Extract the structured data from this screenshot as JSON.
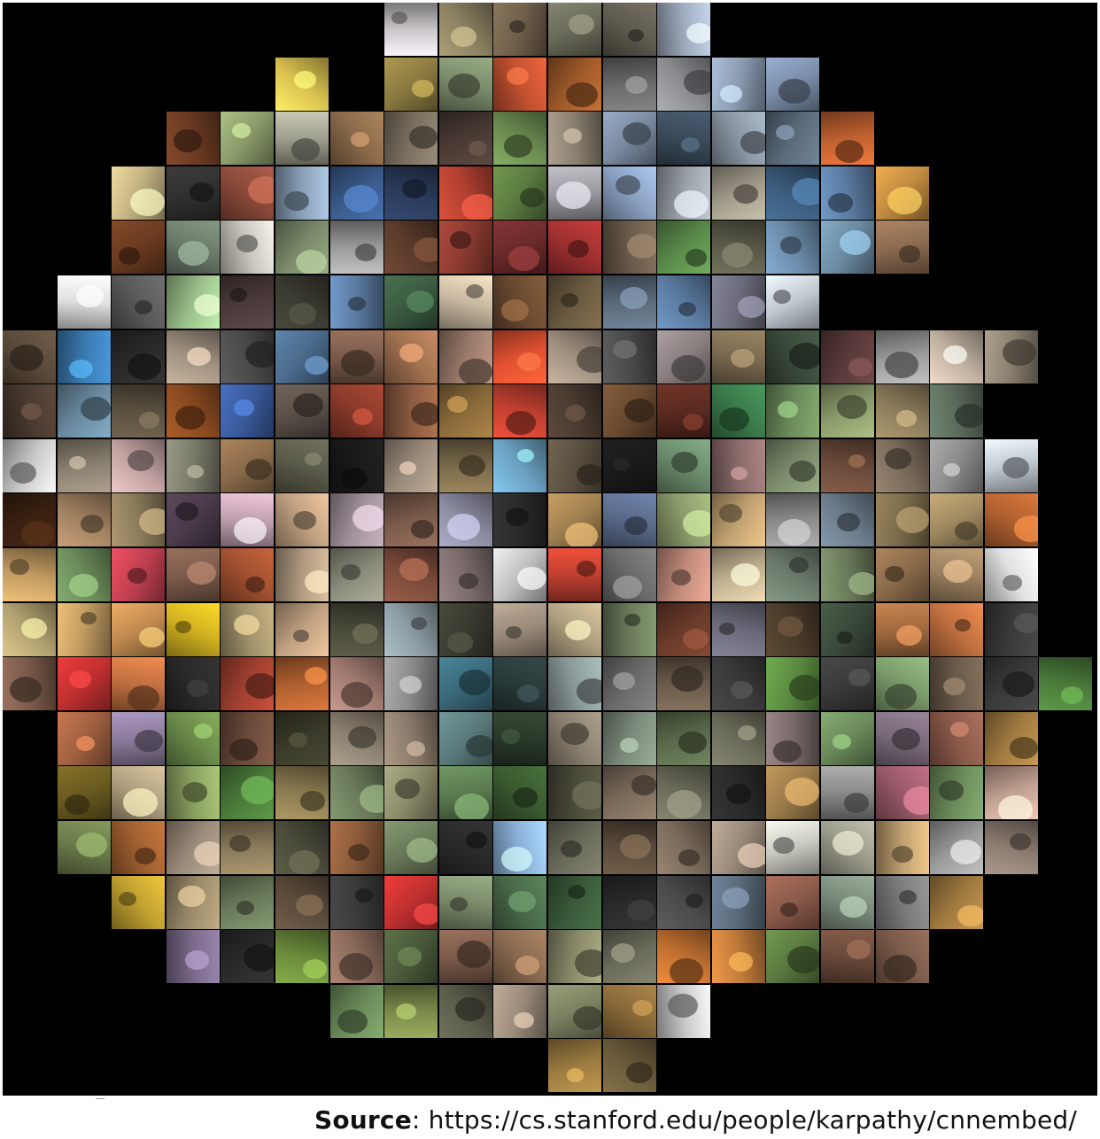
{
  "caption": {
    "label": "Source",
    "separator": ": ",
    "url": "https://cs.stanford.edu/people/karpathy/cnnembed/"
  },
  "grid": {
    "rows": [
      {
        "start": 7,
        "cols": [
          "#c8c4c8",
          "#8a8060",
          "#6e5e4a",
          "#6a6a5a",
          "#5e5a4e",
          "#9eaabd"
        ]
      },
      {
        "start": 5,
        "cols": [
          "#d8c050",
          "#000000",
          "#8a7a40",
          "#7a8a6a",
          "#c05030",
          "#a05a2a",
          "#6a6a6a",
          "#8a8c90",
          "#8a9ab0",
          "#7a8ca8"
        ]
      },
      {
        "start": 3,
        "cols": [
          "#6a3a22",
          "#8a9a6a",
          "#a0a090",
          "#8a6a4a",
          "#7a7060",
          "#4a3a34",
          "#6a8a50",
          "#8a8070",
          "#7a8aa0",
          "#3a4a5a",
          "#8a96a4",
          "#5a6a7a",
          "#c06030"
        ]
      },
      {
        "start": 2,
        "cols": [
          "#c0b080",
          "#303030",
          "#8a4a3a",
          "#8aa0b8",
          "#3a5a8a",
          "#2a3a5a",
          "#b04030",
          "#5a7a40",
          "#9a9aa0",
          "#8aa0c0",
          "#9aa0a8",
          "#a09a8a",
          "#3a5a7a",
          "#5a7aa0",
          "#c08a40"
        ]
      },
      {
        "start": 2,
        "cols": [
          "#6a3a20",
          "#6a7a6a",
          "#c8c4bc",
          "#7a8a6a",
          "#9a9a9a",
          "#5a3a2a",
          "#8a3a30",
          "#6a2a2a",
          "#a03030",
          "#6a5a4a",
          "#5a8a4a",
          "#5a5a4a",
          "#6a8aa8",
          "#6a8aa0",
          "#8a6a50"
        ]
      },
      {
        "start": 1,
        "cols": [
          "#e0e0e0",
          "#5a5a5a",
          "#9ac08a",
          "#4a3a3a",
          "#3a3a30",
          "#5a7aa0",
          "#3a5a40",
          "#c8b8a0",
          "#6a4a30",
          "#6a5a40",
          "#5a6a7a",
          "#5a7aa0",
          "#6a6a7a",
          "#c0c8d0",
          "#000000",
          "#000000",
          "#000000"
        ]
      },
      {
        "start": 0,
        "cols": [
          "#5a4a3a",
          "#3a7ab0",
          "#2a2a2a",
          "#a09080",
          "#4a4a4a",
          "#4a6a8a",
          "#7a5a4a",
          "#a07050",
          "#9a7a6a",
          "#e05030",
          "#a09080",
          "#4a4a4a",
          "#8a8080",
          "#7a6a50",
          "#3a4a3a",
          "#5a3a3a",
          "#9a9a9a",
          "#c0b0a0",
          "#8a8070"
        ]
      },
      {
        "start": 0,
        "cols": [
          "#4a3a30",
          "#6a8aa0",
          "#5a5040",
          "#8a4a20",
          "#3a5a9a",
          "#5a5048",
          "#8a3a2a",
          "#8a5a40",
          "#8a6a3a",
          "#c04030",
          "#4a3a30",
          "#6a4a30",
          "#5a2a20",
          "#3a7a4a",
          "#6a8a5a",
          "#8a9a6a",
          "#8a7a5a",
          "#5a6a5a",
          "#000000"
        ]
      },
      {
        "start": 0,
        "cols": [
          "#c8c8c8",
          "#8a8070",
          "#c0a0a0",
          "#7a7a6a",
          "#8a6a4a",
          "#5a5a4a",
          "#1a1a1a",
          "#9a8a7a",
          "#7a6a4a",
          "#6aa0c0",
          "#5a5040",
          "#1a1a1a",
          "#6a8a6a",
          "#8a6a6a",
          "#7a8a6a",
          "#6a4a3a",
          "#7a6a5a",
          "#8a8a8a",
          "#c0c8d0"
        ]
      },
      {
        "start": 0,
        "cols": [
          "#3a2010",
          "#a08060",
          "#8a7a5a",
          "#4a3a4a",
          "#c0a0b0",
          "#c0a080",
          "#a0909a",
          "#7a5a4a",
          "#8a8aa0",
          "#2a2a2a",
          "#a08050",
          "#5a6a8a",
          "#8a9a6a",
          "#c0a070",
          "#8a8a8a",
          "#6a7a8a",
          "#7a6a4a",
          "#a08a60",
          "#b06030"
        ]
      },
      {
        "start": 0,
        "cols": [
          "#c09a60",
          "#6a8a5a",
          "#c04050",
          "#7a5a4a",
          "#a05030",
          "#b09a80",
          "#8a8a7a",
          "#7a4a3a",
          "#7a6a6a",
          "#c0c0c0",
          "#c04030",
          "#6a6a6a",
          "#c08a7a",
          "#c0b090",
          "#6a7a6a",
          "#6a7a5a",
          "#8a6a4a",
          "#9a8060",
          "#e0e0e0"
        ]
      },
      {
        "start": 0,
        "cols": [
          "#b0a070",
          "#c09a60",
          "#c08a50",
          "#d0b020",
          "#a0906a",
          "#c0a080",
          "#4a4a3a",
          "#8a9aa0",
          "#3a3a30",
          "#9a8a7a",
          "#b0a080",
          "#6a7a5a",
          "#6a3a2a",
          "#6a6a7a",
          "#4a3a2a",
          "#3a4a3a",
          "#a06a40",
          "#c07040",
          "#3a3a3a"
        ]
      },
      {
        "start": 0,
        "cols": [
          "#7a5a4a",
          "#c03030",
          "#c07040",
          "#2a2a2a",
          "#a04030",
          "#b06030",
          "#a07a70",
          "#8a8a8a",
          "#3a6a7a",
          "#2a3a3a",
          "#8a9a9a",
          "#6a6a6a",
          "#6a5a4a",
          "#3a3a3a",
          "#5a8a40",
          "#3a3a3a",
          "#7a9a6a",
          "#6a5a4a",
          "#3a3a3a",
          "#4a7a3a"
        ]
      },
      {
        "start": 1,
        "cols": [
          "#a06040",
          "#8a7a9a",
          "#6a8a4a",
          "#6a4a3a",
          "#3a3a2a",
          "#8a8070",
          "#8a7a6a",
          "#5a7a7a",
          "#2a3a2a",
          "#8a8070",
          "#7a8a7a",
          "#5a6a4a",
          "#6a6a5a",
          "#7a6a6a",
          "#6a8a5a",
          "#7a6a7a",
          "#8a5a4a",
          "#a07a40"
        ]
      },
      {
        "start": 1,
        "cols": [
          "#6a5a20",
          "#b0a080",
          "#8aa060",
          "#4a7a3a",
          "#8a7a50",
          "#6a7a5a",
          "#8a8a6a",
          "#5a7a50",
          "#3a5a30",
          "#4a4a3a",
          "#7a6a5a",
          "#6a6a5a",
          "#2a2a2a",
          "#9a7a4a",
          "#8a8a8a",
          "#9a5a6a",
          "#6a8a5a",
          "#c0a090"
        ]
      },
      {
        "start": 1,
        "cols": [
          "#6a7a4a",
          "#a06030",
          "#9a8a7a",
          "#8a7a5a",
          "#4a4a3a",
          "#8a5a3a",
          "#6a7a5a",
          "#2a2a2a",
          "#8ab0d8",
          "#6a6a5a",
          "#5a4a3a",
          "#7a6a5a",
          "#9a8a7a",
          "#c8c8c0",
          "#9a9a8a",
          "#c0a070",
          "#9a9a9a",
          "#8a7a70"
        ]
      },
      {
        "start": 2,
        "cols": [
          "#c0a030",
          "#9a8a6a",
          "#6a7a5a",
          "#5a4a3a",
          "#3a3a3a",
          "#c03030",
          "#7a8a6a",
          "#4a6a4a",
          "#3a5a3a",
          "#2a2a2a",
          "#4a4a4a",
          "#5a6a7a",
          "#8a5a4a",
          "#7a8a7a",
          "#7a7a7a",
          "#a07a40"
        ]
      },
      {
        "start": 3,
        "cols": [
          "#7a6a8a",
          "#2a2a2a",
          "#6a8a3a",
          "#8a6a5a",
          "#4a5a3a",
          "#7a5a4a",
          "#8a6a50",
          "#8a8a6a",
          "#6a6a5a",
          "#c07030",
          "#c07a3a",
          "#5a7a40",
          "#6a4a3a",
          "#7a5a4a"
        ]
      },
      {
        "start": 6,
        "cols": [
          "#6a8a5a",
          "#7a8a4a",
          "#5a5a4a",
          "#9a8a7a",
          "#7a8060",
          "#8a6a3a",
          "#c8c8c8"
        ]
      },
      {
        "start": 10,
        "cols": [
          "#9a7a40",
          "#6a5a3a"
        ]
      }
    ]
  }
}
